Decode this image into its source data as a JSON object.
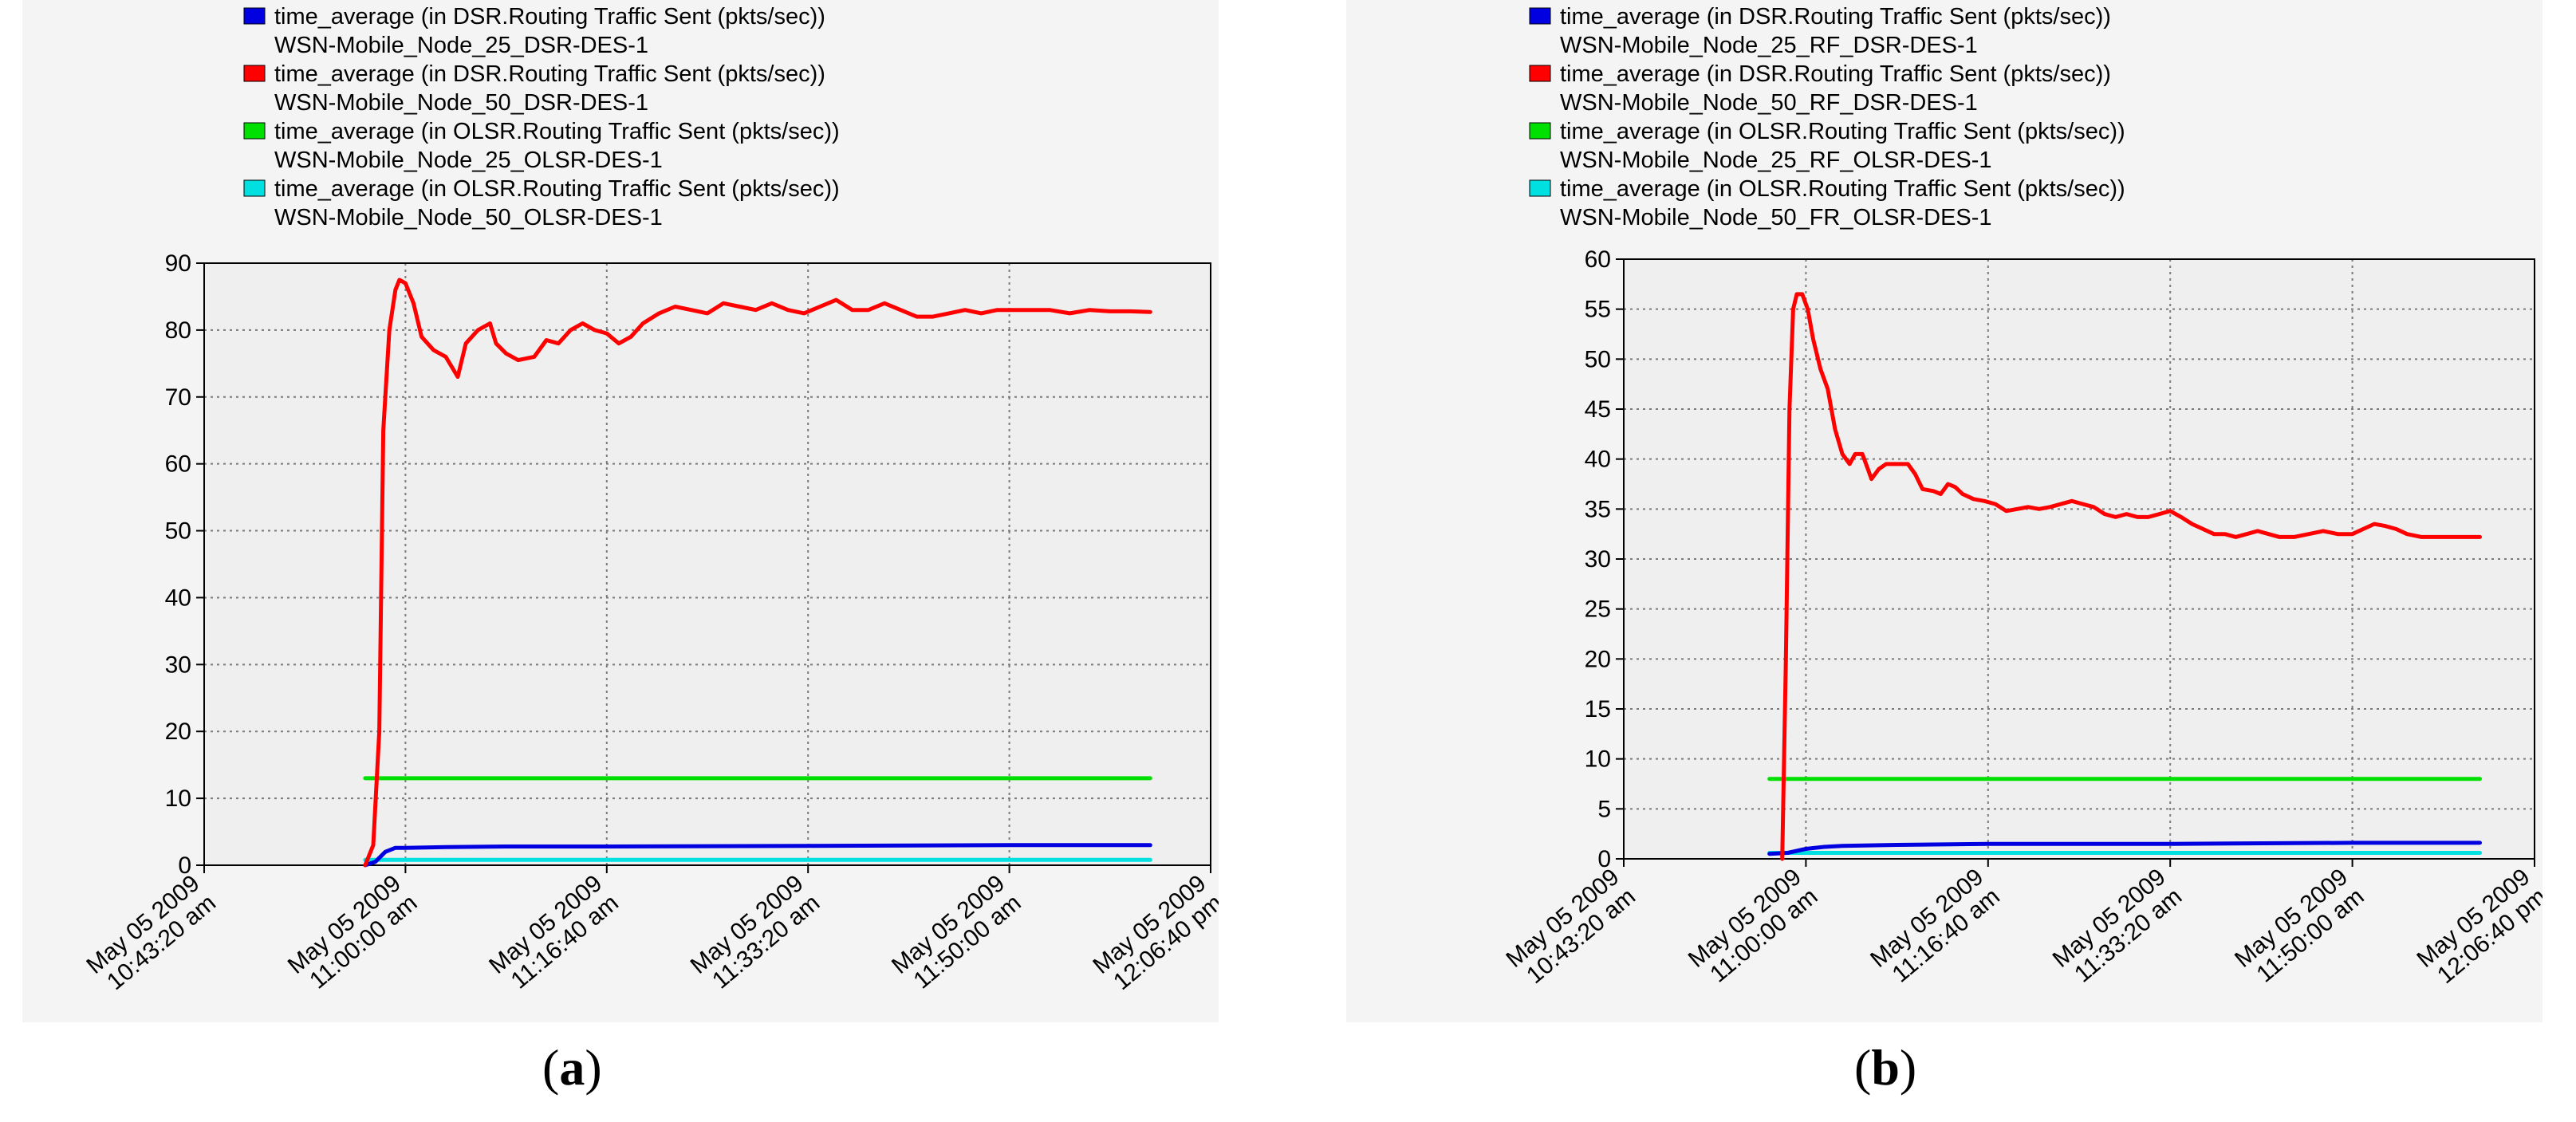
{
  "colors": {
    "panel_bg": "#f4f4f4",
    "plot_bg": "#efefef",
    "grid": "#7a7a7a",
    "axis": "#000000"
  },
  "chart_data": [
    {
      "type": "line",
      "caption_letter": "a",
      "x_ticks": [
        {
          "t": 0,
          "line1": "May 05 2009",
          "line2": "10:43:20 am"
        },
        {
          "t": 1000,
          "line1": "May 05 2009",
          "line2": "11:00:00 am"
        },
        {
          "t": 2000,
          "line1": "May 05 2009",
          "line2": "11:16:40 am"
        },
        {
          "t": 3000,
          "line1": "May 05 2009",
          "line2": "11:33:20 am"
        },
        {
          "t": 4000,
          "line1": "May 05 2009",
          "line2": "11:50:00 am"
        },
        {
          "t": 5000,
          "line1": "May 05 2009",
          "line2": "12:06:40 pm"
        }
      ],
      "xlim": [
        0,
        5000
      ],
      "ylim": [
        0,
        90
      ],
      "y_ticks": [
        0,
        10,
        20,
        30,
        40,
        50,
        60,
        70,
        80,
        90
      ],
      "grid": true,
      "legend_position": "top",
      "series": [
        {
          "name": "time_average (in DSR.Routing Traffic Sent (pkts/sec))",
          "sub": "WSN-Mobile_Node_25_DSR-DES-1",
          "color": "#0000e0",
          "points": [
            [
              800,
              0
            ],
            [
              850,
              0.5
            ],
            [
              900,
              2
            ],
            [
              950,
              2.6
            ],
            [
              1000,
              2.6
            ],
            [
              1200,
              2.7
            ],
            [
              1500,
              2.8
            ],
            [
              2000,
              2.8
            ],
            [
              3000,
              2.9
            ],
            [
              4000,
              3
            ],
            [
              4700,
              3
            ]
          ]
        },
        {
          "name": "time_average (in DSR.Routing Traffic Sent (pkts/sec))",
          "sub": "WSN-Mobile_Node_50_DSR-DES-1",
          "color": "#ff0000",
          "points": [
            [
              800,
              0
            ],
            [
              840,
              3
            ],
            [
              870,
              20
            ],
            [
              890,
              65
            ],
            [
              920,
              80
            ],
            [
              950,
              86
            ],
            [
              970,
              87.5
            ],
            [
              1000,
              87
            ],
            [
              1040,
              84
            ],
            [
              1080,
              79
            ],
            [
              1140,
              77
            ],
            [
              1200,
              76
            ],
            [
              1260,
              73
            ],
            [
              1300,
              78
            ],
            [
              1360,
              80
            ],
            [
              1420,
              81
            ],
            [
              1450,
              78
            ],
            [
              1500,
              76.5
            ],
            [
              1560,
              75.5
            ],
            [
              1640,
              76
            ],
            [
              1700,
              78.5
            ],
            [
              1760,
              78
            ],
            [
              1820,
              80
            ],
            [
              1880,
              81
            ],
            [
              1940,
              80
            ],
            [
              2000,
              79.5
            ],
            [
              2060,
              78
            ],
            [
              2120,
              79
            ],
            [
              2180,
              81
            ],
            [
              2260,
              82.5
            ],
            [
              2340,
              83.5
            ],
            [
              2420,
              83
            ],
            [
              2500,
              82.5
            ],
            [
              2580,
              84
            ],
            [
              2660,
              83.5
            ],
            [
              2740,
              83
            ],
            [
              2820,
              84
            ],
            [
              2900,
              83
            ],
            [
              2980,
              82.5
            ],
            [
              3060,
              83.5
            ],
            [
              3140,
              84.5
            ],
            [
              3220,
              83
            ],
            [
              3300,
              83
            ],
            [
              3380,
              84
            ],
            [
              3460,
              83
            ],
            [
              3540,
              82
            ],
            [
              3620,
              82
            ],
            [
              3700,
              82.5
            ],
            [
              3780,
              83
            ],
            [
              3860,
              82.5
            ],
            [
              3940,
              83
            ],
            [
              4020,
              83
            ],
            [
              4100,
              83
            ],
            [
              4200,
              83
            ],
            [
              4300,
              82.5
            ],
            [
              4400,
              83
            ],
            [
              4500,
              82.8
            ],
            [
              4600,
              82.8
            ],
            [
              4700,
              82.7
            ]
          ]
        },
        {
          "name": "time_average (in OLSR.Routing Traffic Sent (pkts/sec))",
          "sub": "WSN-Mobile_Node_25_OLSR-DES-1",
          "color": "#00e000",
          "points": [
            [
              800,
              13
            ],
            [
              4700,
              13
            ]
          ]
        },
        {
          "name": "time_average (in OLSR.Routing Traffic Sent (pkts/sec))",
          "sub": "WSN-Mobile_Node_50_OLSR-DES-1",
          "color": "#00e0e0",
          "points": [
            [
              800,
              0.8
            ],
            [
              4700,
              0.8
            ]
          ]
        }
      ]
    },
    {
      "type": "line",
      "caption_letter": "b",
      "x_ticks": [
        {
          "t": 0,
          "line1": "May 05 2009",
          "line2": "10:43:20 am"
        },
        {
          "t": 1000,
          "line1": "May 05 2009",
          "line2": "11:00:00 am"
        },
        {
          "t": 2000,
          "line1": "May 05 2009",
          "line2": "11:16:40 am"
        },
        {
          "t": 3000,
          "line1": "May 05 2009",
          "line2": "11:33:20 am"
        },
        {
          "t": 4000,
          "line1": "May 05 2009",
          "line2": "11:50:00 am"
        },
        {
          "t": 5000,
          "line1": "May 05 2009",
          "line2": "12:06:40 pm"
        }
      ],
      "xlim": [
        0,
        5000
      ],
      "ylim": [
        0,
        60
      ],
      "y_ticks": [
        0,
        5,
        10,
        15,
        20,
        25,
        30,
        35,
        40,
        45,
        50,
        55,
        60
      ],
      "grid": true,
      "legend_position": "top",
      "series": [
        {
          "name": "time_average (in DSR.Routing Traffic Sent (pkts/sec))",
          "sub": "WSN-Mobile_Node_25_RF_DSR-DES-1",
          "color": "#0000e0",
          "points": [
            [
              800,
              0.5
            ],
            [
              900,
              0.6
            ],
            [
              950,
              0.8
            ],
            [
              1000,
              1
            ],
            [
              1100,
              1.2
            ],
            [
              1200,
              1.3
            ],
            [
              1500,
              1.4
            ],
            [
              2000,
              1.5
            ],
            [
              3000,
              1.5
            ],
            [
              4000,
              1.6
            ],
            [
              4700,
              1.6
            ]
          ]
        },
        {
          "name": "time_average (in DSR.Routing Traffic Sent (pkts/sec))",
          "sub": "WSN-Mobile_Node_50_RF_DSR-DES-1",
          "color": "#ff0000",
          "points": [
            [
              870,
              0
            ],
            [
              890,
              20
            ],
            [
              910,
              45
            ],
            [
              930,
              55
            ],
            [
              950,
              56.5
            ],
            [
              980,
              56.5
            ],
            [
              1010,
              55
            ],
            [
              1040,
              52
            ],
            [
              1080,
              49
            ],
            [
              1120,
              47
            ],
            [
              1160,
              43
            ],
            [
              1200,
              40.5
            ],
            [
              1240,
              39.5
            ],
            [
              1270,
              40.5
            ],
            [
              1310,
              40.5
            ],
            [
              1340,
              39
            ],
            [
              1360,
              38
            ],
            [
              1400,
              39
            ],
            [
              1440,
              39.5
            ],
            [
              1500,
              39.5
            ],
            [
              1560,
              39.5
            ],
            [
              1600,
              38.5
            ],
            [
              1640,
              37
            ],
            [
              1700,
              36.8
            ],
            [
              1740,
              36.5
            ],
            [
              1780,
              37.5
            ],
            [
              1820,
              37.2
            ],
            [
              1860,
              36.5
            ],
            [
              1920,
              36
            ],
            [
              1980,
              35.8
            ],
            [
              2040,
              35.5
            ],
            [
              2100,
              34.8
            ],
            [
              2160,
              35
            ],
            [
              2220,
              35.2
            ],
            [
              2280,
              35
            ],
            [
              2340,
              35.2
            ],
            [
              2400,
              35.5
            ],
            [
              2460,
              35.8
            ],
            [
              2520,
              35.5
            ],
            [
              2580,
              35.2
            ],
            [
              2640,
              34.5
            ],
            [
              2700,
              34.2
            ],
            [
              2760,
              34.5
            ],
            [
              2820,
              34.2
            ],
            [
              2880,
              34.2
            ],
            [
              2940,
              34.5
            ],
            [
              3000,
              34.8
            ],
            [
              3060,
              34.2
            ],
            [
              3120,
              33.5
            ],
            [
              3180,
              33
            ],
            [
              3240,
              32.5
            ],
            [
              3300,
              32.5
            ],
            [
              3360,
              32.2
            ],
            [
              3420,
              32.5
            ],
            [
              3480,
              32.8
            ],
            [
              3540,
              32.5
            ],
            [
              3600,
              32.2
            ],
            [
              3680,
              32.2
            ],
            [
              3760,
              32.5
            ],
            [
              3840,
              32.8
            ],
            [
              3920,
              32.5
            ],
            [
              4000,
              32.5
            ],
            [
              4060,
              33
            ],
            [
              4120,
              33.5
            ],
            [
              4180,
              33.3
            ],
            [
              4240,
              33
            ],
            [
              4300,
              32.5
            ],
            [
              4380,
              32.2
            ],
            [
              4460,
              32.2
            ],
            [
              4540,
              32.2
            ],
            [
              4620,
              32.2
            ],
            [
              4700,
              32.2
            ]
          ]
        },
        {
          "name": "time_average (in OLSR.Routing Traffic Sent (pkts/sec))",
          "sub": "WSN-Mobile_Node_25_RF_OLSR-DES-1",
          "color": "#00e000",
          "points": [
            [
              800,
              8
            ],
            [
              4700,
              8
            ]
          ]
        },
        {
          "name": "time_average (in OLSR.Routing Traffic Sent (pkts/sec))",
          "sub": "WSN-Mobile_Node_50_FR_OLSR-DES-1",
          "color": "#00e0e0",
          "points": [
            [
              800,
              0.6
            ],
            [
              4700,
              0.6
            ]
          ]
        }
      ]
    }
  ]
}
